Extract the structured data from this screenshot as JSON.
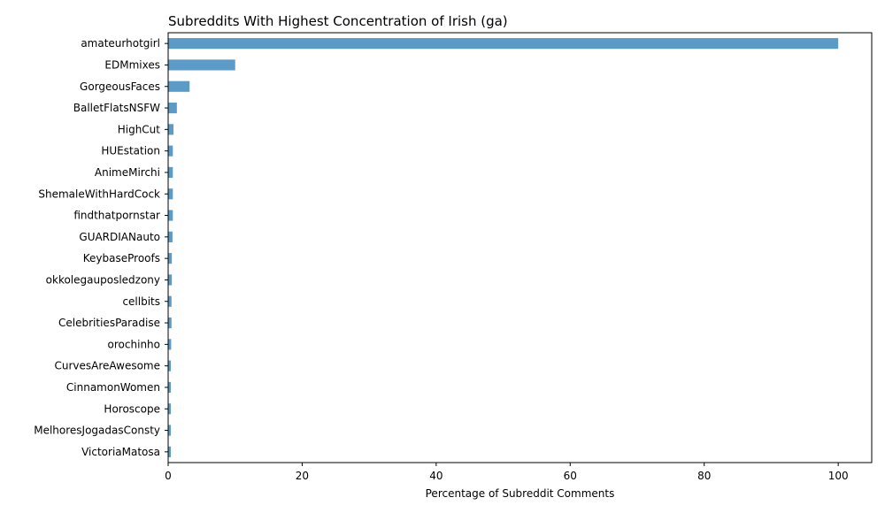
{
  "chart_data": {
    "type": "bar",
    "orientation": "horizontal",
    "title": "Subreddits With Highest Concentration of Irish (ga)",
    "xlabel": "Percentage of Subreddit Comments",
    "ylabel": "",
    "xlim": [
      0,
      105
    ],
    "xticks": [
      0,
      20,
      40,
      60,
      80,
      100
    ],
    "grid": false,
    "bar_color": "#5b9bc8",
    "categories": [
      "amateurhotgirl",
      "EDMmixes",
      "GorgeousFaces",
      "BalletFlatsNSFW",
      "HighCut",
      "HUEstation",
      "AnimeMirchi",
      "ShemaleWithHardCock",
      "findthatpornstar",
      "GUARDIANauto",
      "KeybaseProofs",
      "okkolegauposledzony",
      "cellbits",
      "CelebritiesParadise",
      "orochinho",
      "CurvesAreAwesome",
      "CinnamonWomen",
      "Horoscope",
      "MelhoresJogadasConsty",
      "VictoriaMatosa"
    ],
    "values": [
      100,
      10,
      3.2,
      1.3,
      0.8,
      0.7,
      0.7,
      0.7,
      0.7,
      0.65,
      0.55,
      0.55,
      0.5,
      0.5,
      0.45,
      0.4,
      0.4,
      0.4,
      0.4,
      0.4
    ]
  }
}
